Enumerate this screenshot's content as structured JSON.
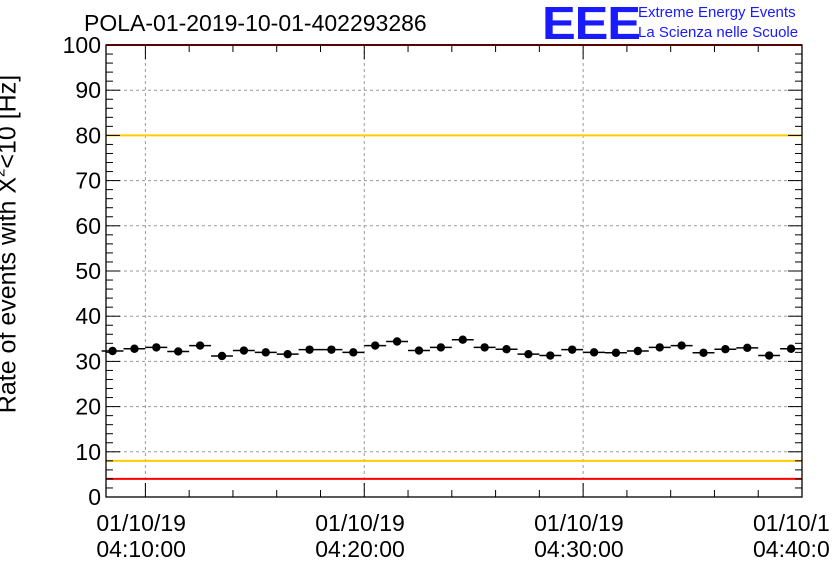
{
  "chart_data": {
    "type": "scatter",
    "title": "POLA-01-2019-10-01-402293286",
    "ylabel_prefix": "Rate of events with X",
    "ylabel_sup": "2",
    "ylabel_suffix": "<10 [Hz]",
    "ylim": [
      0,
      100
    ],
    "yticks": [
      0,
      10,
      20,
      30,
      40,
      50,
      60,
      70,
      80,
      90,
      100
    ],
    "xlim_minutes": [
      8.2,
      40.0
    ],
    "xtick_minutes": [
      10,
      20,
      30,
      40
    ],
    "xtick_labels": [
      {
        "date": "01/10/19",
        "time": "04:10:00"
      },
      {
        "date": "01/10/19",
        "time": "04:20:00"
      },
      {
        "date": "01/10/19",
        "time": "04:30:00"
      },
      {
        "date": "01/10/1",
        "time": "04:40:0"
      }
    ],
    "grid": true,
    "reference_lines": [
      {
        "y": 100,
        "color": "#ff0000"
      },
      {
        "y": 80,
        "color": "#ffcc00"
      },
      {
        "y": 8,
        "color": "#ffcc00"
      },
      {
        "y": 4,
        "color": "#ff0000"
      }
    ],
    "series": [
      {
        "x": [
          8.5,
          9.5,
          10.5,
          11.5,
          12.5,
          13.5,
          14.5,
          15.5,
          16.5,
          17.5,
          18.5,
          19.5,
          20.5,
          21.5,
          22.5,
          23.5,
          24.5,
          25.5,
          26.5,
          27.5,
          28.5,
          29.5,
          30.5,
          31.5,
          32.5,
          33.5,
          34.5,
          35.5,
          36.5,
          37.5,
          38.5,
          39.5
        ],
        "y": [
          32.3,
          32.8,
          33.1,
          32.2,
          33.5,
          31.2,
          32.4,
          32.0,
          31.6,
          32.6,
          32.6,
          32.0,
          33.5,
          34.4,
          32.4,
          33.1,
          34.8,
          33.1,
          32.7,
          31.6,
          31.3,
          32.6,
          32.0,
          31.9,
          32.3,
          33.1,
          33.5,
          31.9,
          32.7,
          33.0,
          31.3,
          32.8
        ]
      }
    ]
  },
  "logo": {
    "mark": "EEE",
    "line1": "Extreme Energy Events",
    "line2": "La Scienza nelle Scuole"
  }
}
